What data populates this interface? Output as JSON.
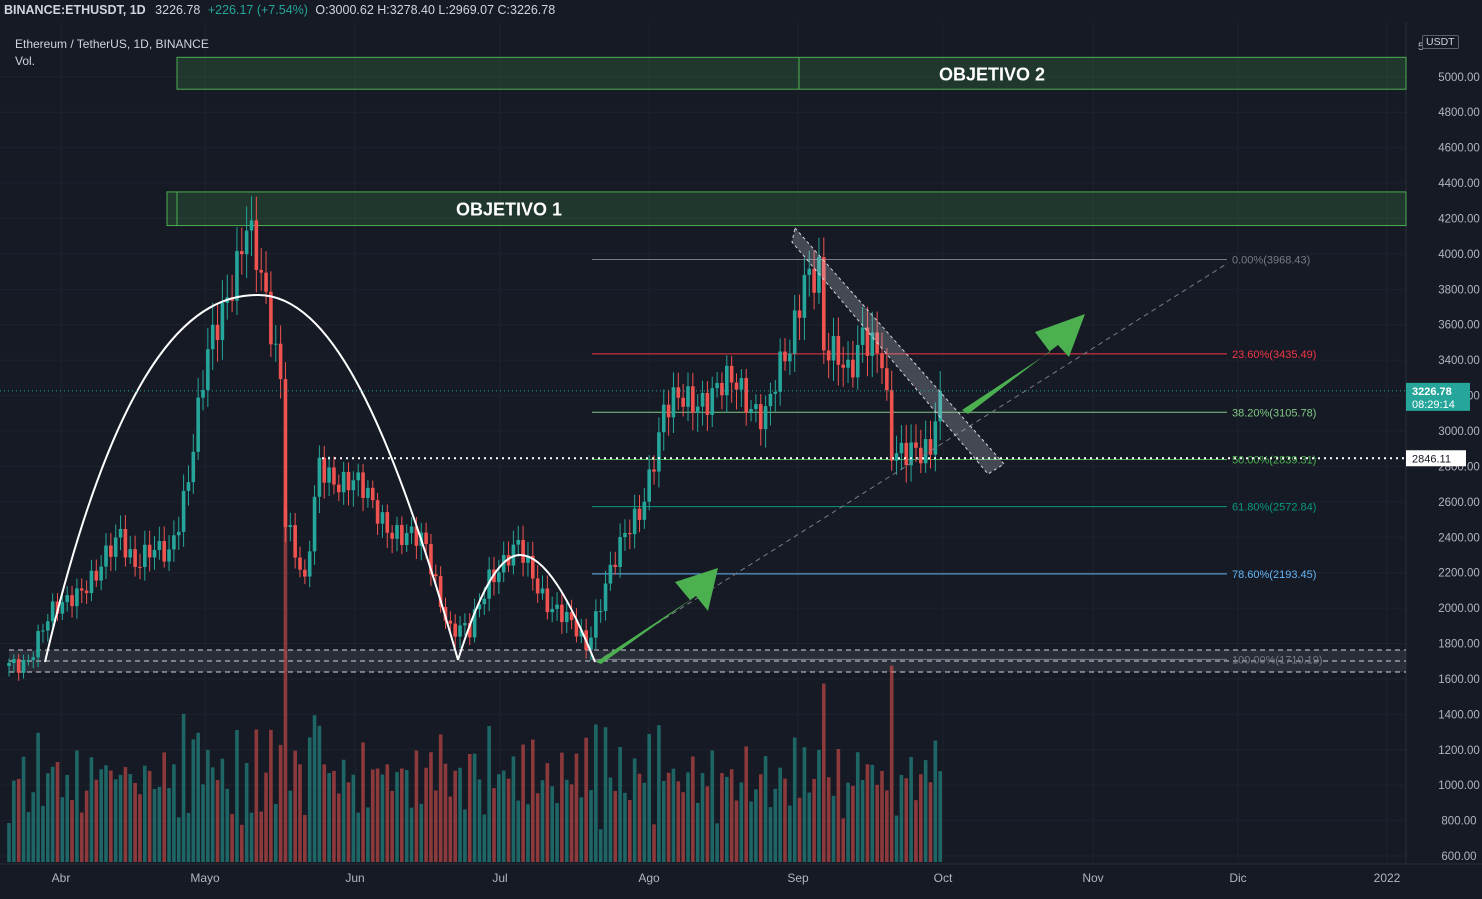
{
  "header": {
    "symbol": "BINANCE:ETHUSDT, 1D",
    "last": "3226.78",
    "change": "+226.17 (+7.54%)",
    "ohlc": "O:3000.62 H:3278.40 L:2969.07 C:3226.78"
  },
  "legend": {
    "pair": "Ethereum / TetherUS, 1D, BINANCE",
    "volume_label": "Vol."
  },
  "axis": {
    "unit": "USDT",
    "top_tick": "5",
    "current_price": "3226.78",
    "countdown": "08:29:14",
    "level_label": "2846.11",
    "y_ticks": [
      600,
      800,
      1000,
      1200,
      1400,
      1600,
      1800,
      2000,
      2200,
      2400,
      2600,
      2800,
      3000,
      3200,
      3400,
      3600,
      3800,
      4000,
      4200,
      4400,
      4600,
      4800,
      5000
    ],
    "x_labels": [
      "Abr",
      "Mayo",
      "Jun",
      "Jul",
      "Ago",
      "Sep",
      "Oct",
      "Nov",
      "Dic",
      "2022"
    ]
  },
  "zones": [
    {
      "name": "objetivo-2",
      "label": "OBJETIVO 2",
      "low": 4930,
      "high": 5110
    },
    {
      "name": "objetivo-1",
      "label": "OBJETIVO 1",
      "low": 4160,
      "high": 4350
    }
  ],
  "fibonacci": [
    {
      "label": "0.00%(3968.43)",
      "value": 3968.43,
      "color": "#787b86"
    },
    {
      "label": "23.60%(3435.49)",
      "value": 3435.49,
      "color": "#f23645"
    },
    {
      "label": "38.20%(3105.78)",
      "value": 3105.78,
      "color": "#81c784"
    },
    {
      "label": "50.00%(2839.31)",
      "value": 2839.31,
      "color": "#4caf50"
    },
    {
      "label": "61.80%(2572.84)",
      "value": 2572.84,
      "color": "#089981"
    },
    {
      "label": "78.60%(2193.45)",
      "value": 2193.45,
      "color": "#64b5f6"
    },
    {
      "label": "100.00%(1710.19)",
      "value": 1710.19,
      "color": "#787b86"
    }
  ],
  "colors": {
    "up": "#26a69a",
    "down": "#ef5350",
    "zone": "#4caf50",
    "arrow": "#4caf50",
    "price_tag": "#26a69a"
  },
  "chart_data": {
    "type": "candlestick",
    "series_anchors": [
      {
        "date": "2021-03-23",
        "close": 1690
      },
      {
        "date": "2021-03-27",
        "close": 1720
      },
      {
        "date": "2021-04-01",
        "close": 1960
      },
      {
        "date": "2021-04-05",
        "close": 2100
      },
      {
        "date": "2021-04-10",
        "close": 2150
      },
      {
        "date": "2021-04-15",
        "close": 2450
      },
      {
        "date": "2021-04-18",
        "close": 2260
      },
      {
        "date": "2021-04-25",
        "close": 2320
      },
      {
        "date": "2021-04-29",
        "close": 2750
      },
      {
        "date": "2021-05-03",
        "close": 3400
      },
      {
        "date": "2021-05-07",
        "close": 3800
      },
      {
        "date": "2021-05-11",
        "close": 4150
      },
      {
        "date": "2021-05-15",
        "close": 3700
      },
      {
        "date": "2021-05-18",
        "close": 3350
      },
      {
        "date": "2021-05-19",
        "close": 2550
      },
      {
        "date": "2021-05-23",
        "close": 2100
      },
      {
        "date": "2021-05-26",
        "close": 2800
      },
      {
        "date": "2021-06-02",
        "close": 2700
      },
      {
        "date": "2021-06-07",
        "close": 2550
      },
      {
        "date": "2021-06-12",
        "close": 2400
      },
      {
        "date": "2021-06-17",
        "close": 2350
      },
      {
        "date": "2021-06-22",
        "close": 1880
      },
      {
        "date": "2021-06-26",
        "close": 1850
      },
      {
        "date": "2021-06-30",
        "close": 2200
      },
      {
        "date": "2021-07-06",
        "close": 2320
      },
      {
        "date": "2021-07-12",
        "close": 2050
      },
      {
        "date": "2021-07-20",
        "close": 1790
      },
      {
        "date": "2021-07-24",
        "close": 2150
      },
      {
        "date": "2021-07-31",
        "close": 2550
      },
      {
        "date": "2021-08-05",
        "close": 3100
      },
      {
        "date": "2021-08-12",
        "close": 3200
      },
      {
        "date": "2021-08-20",
        "close": 3250
      },
      {
        "date": "2021-08-26",
        "close": 3100
      },
      {
        "date": "2021-08-31",
        "close": 3450
      },
      {
        "date": "2021-09-03",
        "close": 3930
      },
      {
        "date": "2021-09-06",
        "close": 3910
      },
      {
        "date": "2021-09-07",
        "close": 3420
      },
      {
        "date": "2021-09-12",
        "close": 3350
      },
      {
        "date": "2021-09-15",
        "close": 3600
      },
      {
        "date": "2021-09-19",
        "close": 3350
      },
      {
        "date": "2021-09-21",
        "close": 2850
      },
      {
        "date": "2021-09-25",
        "close": 2950
      },
      {
        "date": "2021-09-29",
        "close": 2850
      },
      {
        "date": "2021-10-01",
        "close": 3226.78
      }
    ],
    "y_range": [
      600,
      5050
    ],
    "x_range": [
      "2021-03-23",
      "2022-01-10"
    ],
    "annotations": [
      "OBJETIVO 1",
      "OBJETIVO 2"
    ],
    "level": 2846.11
  }
}
